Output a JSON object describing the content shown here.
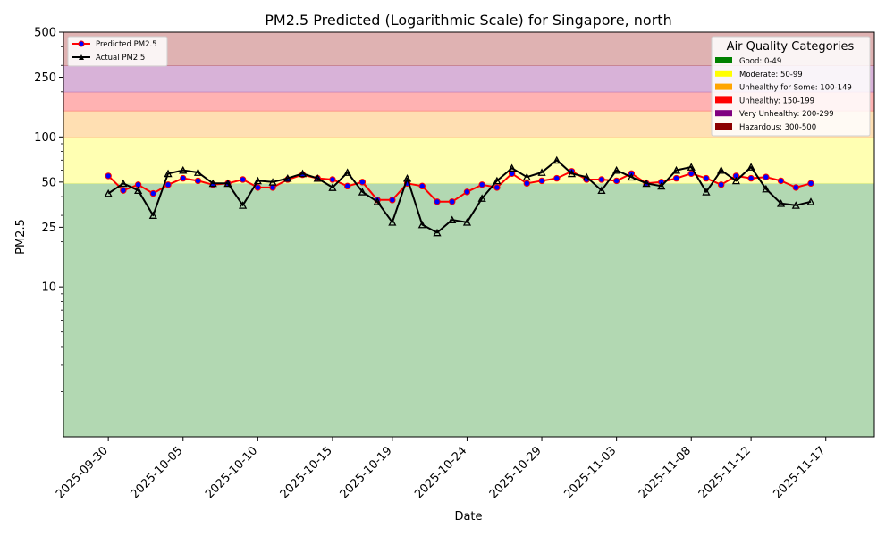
{
  "chart_data": {
    "type": "line",
    "title": "PM2.5 Predicted (Logarithmic Scale) for Singapore, north",
    "xlabel": "Date",
    "ylabel": "PM2.5",
    "yscale": "log",
    "ylim": [
      1,
      500
    ],
    "yticks": [
      {
        "value": 10,
        "label": "10"
      },
      {
        "value": 25,
        "label": "25"
      },
      {
        "value": 50,
        "label": "50"
      },
      {
        "value": 100,
        "label": "100"
      },
      {
        "value": 250,
        "label": "250"
      },
      {
        "value": 500,
        "label": "500"
      }
    ],
    "xticks": [
      "2025-09-30",
      "2025-10-05",
      "2025-10-10",
      "2025-10-15",
      "2025-10-19",
      "2025-10-24",
      "2025-10-29",
      "2025-11-03",
      "2025-11-08",
      "2025-11-12",
      "2025-11-17"
    ],
    "bands": [
      {
        "name": "Good: 0-49",
        "from": 0,
        "to": 49,
        "color": "#b2d8b2",
        "legend_color": "#008000"
      },
      {
        "name": "Moderate: 50-99",
        "from": 49,
        "to": 99,
        "color": "#ffffb2",
        "legend_color": "#ffff00"
      },
      {
        "name": "Unhealthy for Some: 100-149",
        "from": 99,
        "to": 149,
        "color": "#ffdfb2",
        "legend_color": "#ffa500"
      },
      {
        "name": "Unhealthy: 150-199",
        "from": 149,
        "to": 199,
        "color": "#ffb2b2",
        "legend_color": "#ff0000"
      },
      {
        "name": "Very Unhealthy: 200-299",
        "from": 199,
        "to": 299,
        "color": "#d8b2d8",
        "legend_color": "#800080"
      },
      {
        "name": "Hazardous: 300-500",
        "from": 299,
        "to": 500,
        "color": "#dfb2b2",
        "legend_color": "#8b0000"
      }
    ],
    "categories_legend_title": "Air Quality Categories",
    "x": [
      "2025-09-30",
      "2025-10-01",
      "2025-10-02",
      "2025-10-03",
      "2025-10-04",
      "2025-10-05",
      "2025-10-06",
      "2025-10-07",
      "2025-10-08",
      "2025-10-09",
      "2025-10-10",
      "2025-10-11",
      "2025-10-12",
      "2025-10-13",
      "2025-10-14",
      "2025-10-15",
      "2025-10-16",
      "2025-10-17",
      "2025-10-18",
      "2025-10-19",
      "2025-10-20",
      "2025-10-21",
      "2025-10-22",
      "2025-10-23",
      "2025-10-24",
      "2025-10-25",
      "2025-10-26",
      "2025-10-27",
      "2025-10-28",
      "2025-10-29",
      "2025-10-30",
      "2025-10-31",
      "2025-11-01",
      "2025-11-02",
      "2025-11-03",
      "2025-11-04",
      "2025-11-05",
      "2025-11-06",
      "2025-11-07",
      "2025-11-08",
      "2025-11-09",
      "2025-11-10",
      "2025-11-11",
      "2025-11-12",
      "2025-11-13",
      "2025-11-14",
      "2025-11-15",
      "2025-11-16",
      "2025-11-17"
    ],
    "series": [
      {
        "name": "Predicted PM2.5",
        "color": "#ff0000",
        "marker_fill": "#0000ff",
        "values": [
          55,
          44,
          48,
          42,
          48,
          53,
          51,
          48,
          49,
          52,
          46,
          46,
          52,
          56,
          53,
          52,
          47,
          50,
          38,
          38,
          49,
          47,
          37,
          37,
          43,
          48,
          46,
          57,
          49,
          51,
          53,
          59,
          52,
          52,
          51,
          57,
          49,
          50,
          53,
          57,
          53,
          48,
          55,
          53,
          54,
          51,
          46,
          49,
          null
        ]
      },
      {
        "name": "Actual PM2.5",
        "color": "#000000",
        "marker_fill": "#000000",
        "values": [
          42,
          49,
          44,
          30,
          57,
          60,
          58,
          49,
          49,
          35,
          51,
          50,
          53,
          57,
          53,
          46,
          58,
          43,
          37,
          27,
          53,
          26,
          23,
          28,
          27,
          39,
          51,
          62,
          54,
          58,
          70,
          57,
          54,
          44,
          60,
          54,
          49,
          47,
          60,
          63,
          43,
          60,
          51,
          63,
          45,
          36,
          35,
          37,
          null
        ]
      }
    ]
  }
}
